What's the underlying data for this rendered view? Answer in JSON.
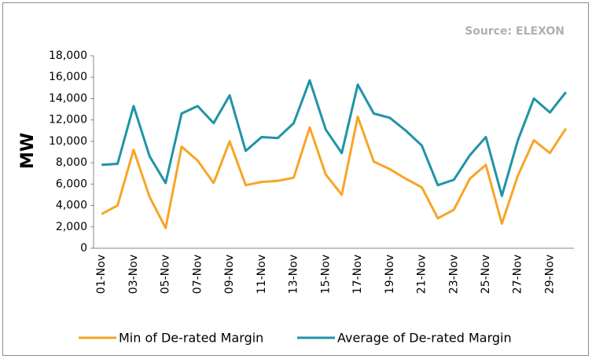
{
  "chart_data": {
    "type": "line",
    "source": "Source: ELEXON",
    "y_label": "MW",
    "categories": [
      "01-Nov",
      null,
      "03-Nov",
      null,
      "05-Nov",
      null,
      "07-Nov",
      null,
      "09-Nov",
      null,
      "11-Nov",
      null,
      "13-Nov",
      null,
      "15-Nov",
      null,
      "17-Nov",
      null,
      "19-Nov",
      null,
      "21-Nov",
      null,
      "23-Nov",
      null,
      "25-Nov",
      null,
      "27-Nov",
      null,
      "29-Nov",
      null
    ],
    "series": [
      {
        "name": "Min of De-rated Margin",
        "color": "#f7a528",
        "values": [
          3200,
          4000,
          9200,
          4800,
          1900,
          9500,
          8200,
          6100,
          10000,
          5900,
          6200,
          6300,
          6600,
          11300,
          6900,
          5000,
          12300,
          8100,
          7400,
          6500,
          5700,
          2800,
          3600,
          6500,
          7800,
          2300,
          6800,
          10100,
          8900,
          11200
        ]
      },
      {
        "name": "Average of De-rated Margin",
        "color": "#1f94a6",
        "values": [
          7800,
          7900,
          13300,
          8600,
          6100,
          12600,
          13300,
          11700,
          14300,
          9100,
          10400,
          10300,
          11700,
          15700,
          11100,
          8900,
          15300,
          12600,
          12200,
          11000,
          9600,
          5900,
          6400,
          8700,
          10400,
          4900,
          10100,
          14000,
          12700,
          14600
        ]
      }
    ],
    "ylim": [
      0,
      18000
    ],
    "yticks": [
      0,
      {
        "value": 2000,
        "label": "2,000"
      },
      {
        "value": 4000,
        "label": "4,000"
      },
      {
        "value": 6000,
        "label": "6,000"
      },
      {
        "value": 8000,
        "label": "8,000"
      },
      {
        "value": 10000,
        "label": "10,000"
      },
      {
        "value": 12000,
        "label": "12,000"
      },
      {
        "value": 14000,
        "label": "14,000"
      },
      {
        "value": 16000,
        "label": "16,000"
      },
      {
        "value": 18000,
        "label": "18,000"
      }
    ]
  }
}
